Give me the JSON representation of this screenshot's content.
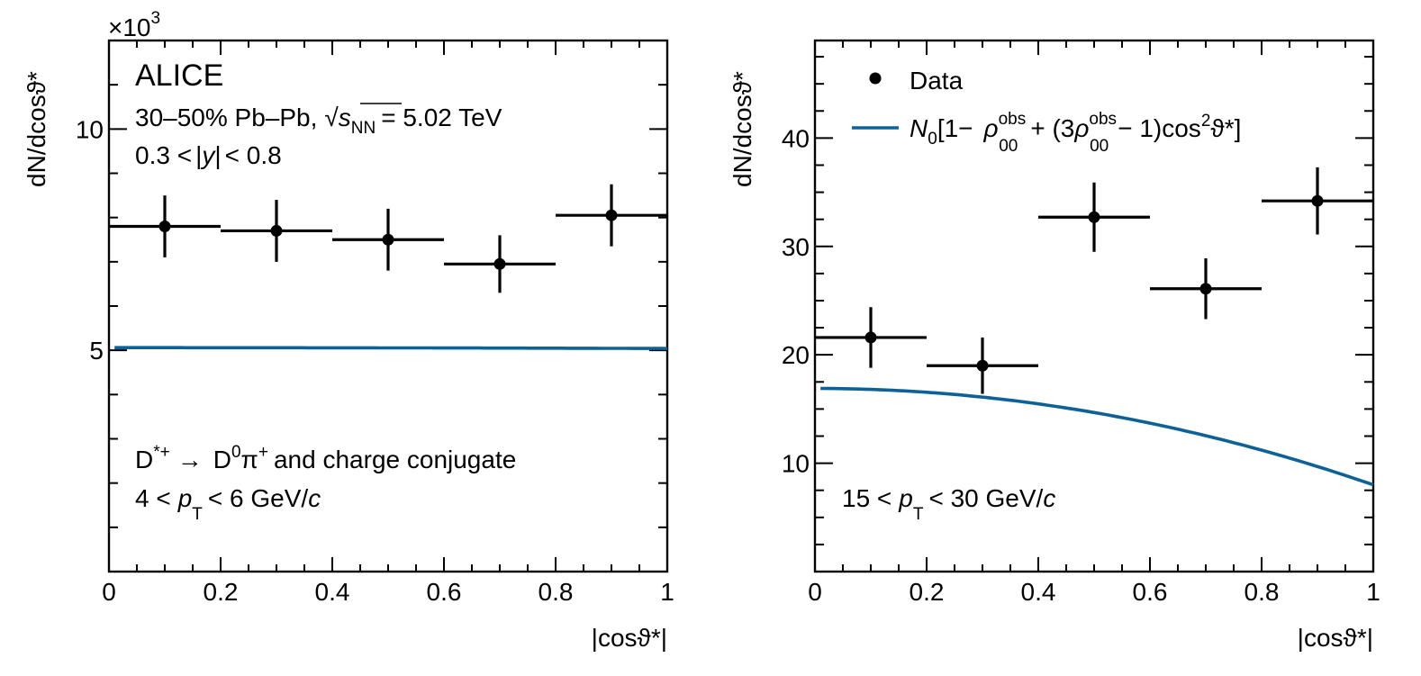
{
  "chart_data": [
    {
      "type": "scatter",
      "xlabel": "|cosϑ*|",
      "ylabel": "dN/dcosϑ*",
      "xlim": [
        0,
        1
      ],
      "ylim": [
        0,
        12
      ],
      "y_multiplier": "×10",
      "y_multiplier_exp": "3",
      "xticks": [
        "0",
        "0.2",
        "0.4",
        "0.6",
        "0.8",
        "1"
      ],
      "yticks": [
        "5",
        "10"
      ],
      "series": [
        {
          "name": "Data",
          "x": [
            0.1,
            0.3,
            0.5,
            0.7,
            0.9
          ],
          "x_halfwidth": [
            0.1,
            0.1,
            0.1,
            0.1,
            0.1
          ],
          "y": [
            7.8,
            7.7,
            7.5,
            6.95,
            8.05
          ],
          "y_err": [
            0.7,
            0.7,
            0.7,
            0.65,
            0.7
          ]
        },
        {
          "name": "fit",
          "N0": 7.58,
          "rho00_obs": 0.3325
        }
      ],
      "annotations": {
        "experiment": "ALICE",
        "collision_prefix": "30–50% Pb–Pb,",
        "sqrt": "√",
        "s": "s",
        "nn": "NN",
        "energy": "= 5.02 TeV",
        "rapidity_a": "0.3 <",
        "rapidity_y": "y",
        "rapidity_b": "< 0.8",
        "decay_d": "D",
        "decay_star": "*+",
        "decay_arrow": "→",
        "decay_d0": "D",
        "decay_0": "0",
        "decay_pi": "π",
        "decay_plus": "+",
        "decay_rest": "and charge conjugate",
        "pt_a": "4 <",
        "pt_p": "p",
        "pt_t": "T",
        "pt_b": "< 6 GeV/",
        "pt_c": "c"
      }
    },
    {
      "type": "scatter",
      "xlabel": "|cosϑ*|",
      "ylabel": "dN/dcosϑ*",
      "xlim": [
        0,
        1
      ],
      "ylim": [
        0,
        49
      ],
      "xticks": [
        "0",
        "0.2",
        "0.4",
        "0.6",
        "0.8",
        "1"
      ],
      "yticks": [
        "10",
        "20",
        "30",
        "40"
      ],
      "series": [
        {
          "name": "Data",
          "x": [
            0.1,
            0.3,
            0.5,
            0.7,
            0.9
          ],
          "x_halfwidth": [
            0.1,
            0.1,
            0.1,
            0.1,
            0.1
          ],
          "y": [
            21.6,
            19.0,
            32.7,
            26.1,
            34.2
          ],
          "y_err": [
            2.8,
            2.6,
            3.2,
            2.8,
            3.1
          ]
        },
        {
          "name": "fit",
          "N0": 20.9,
          "rho00_obs": 0.1915
        }
      ],
      "legend": {
        "position": "top-left",
        "data_label": "Data",
        "fit_n": "N",
        "fit_n_sub": "0",
        "fit_open": "[1−",
        "fit_rho1": "ρ",
        "fit_sup": "obs",
        "fit_sub": "00",
        "fit_mid": "+ (3",
        "fit_rho2": "ρ",
        "fit_tail": "− 1)cos",
        "fit_sq": "2",
        "fit_end": "ϑ*]"
      },
      "annotations": {
        "pt_a": "15 <",
        "pt_p": "p",
        "pt_t": "T",
        "pt_b": "< 30 GeV/",
        "pt_c": "c"
      }
    }
  ]
}
